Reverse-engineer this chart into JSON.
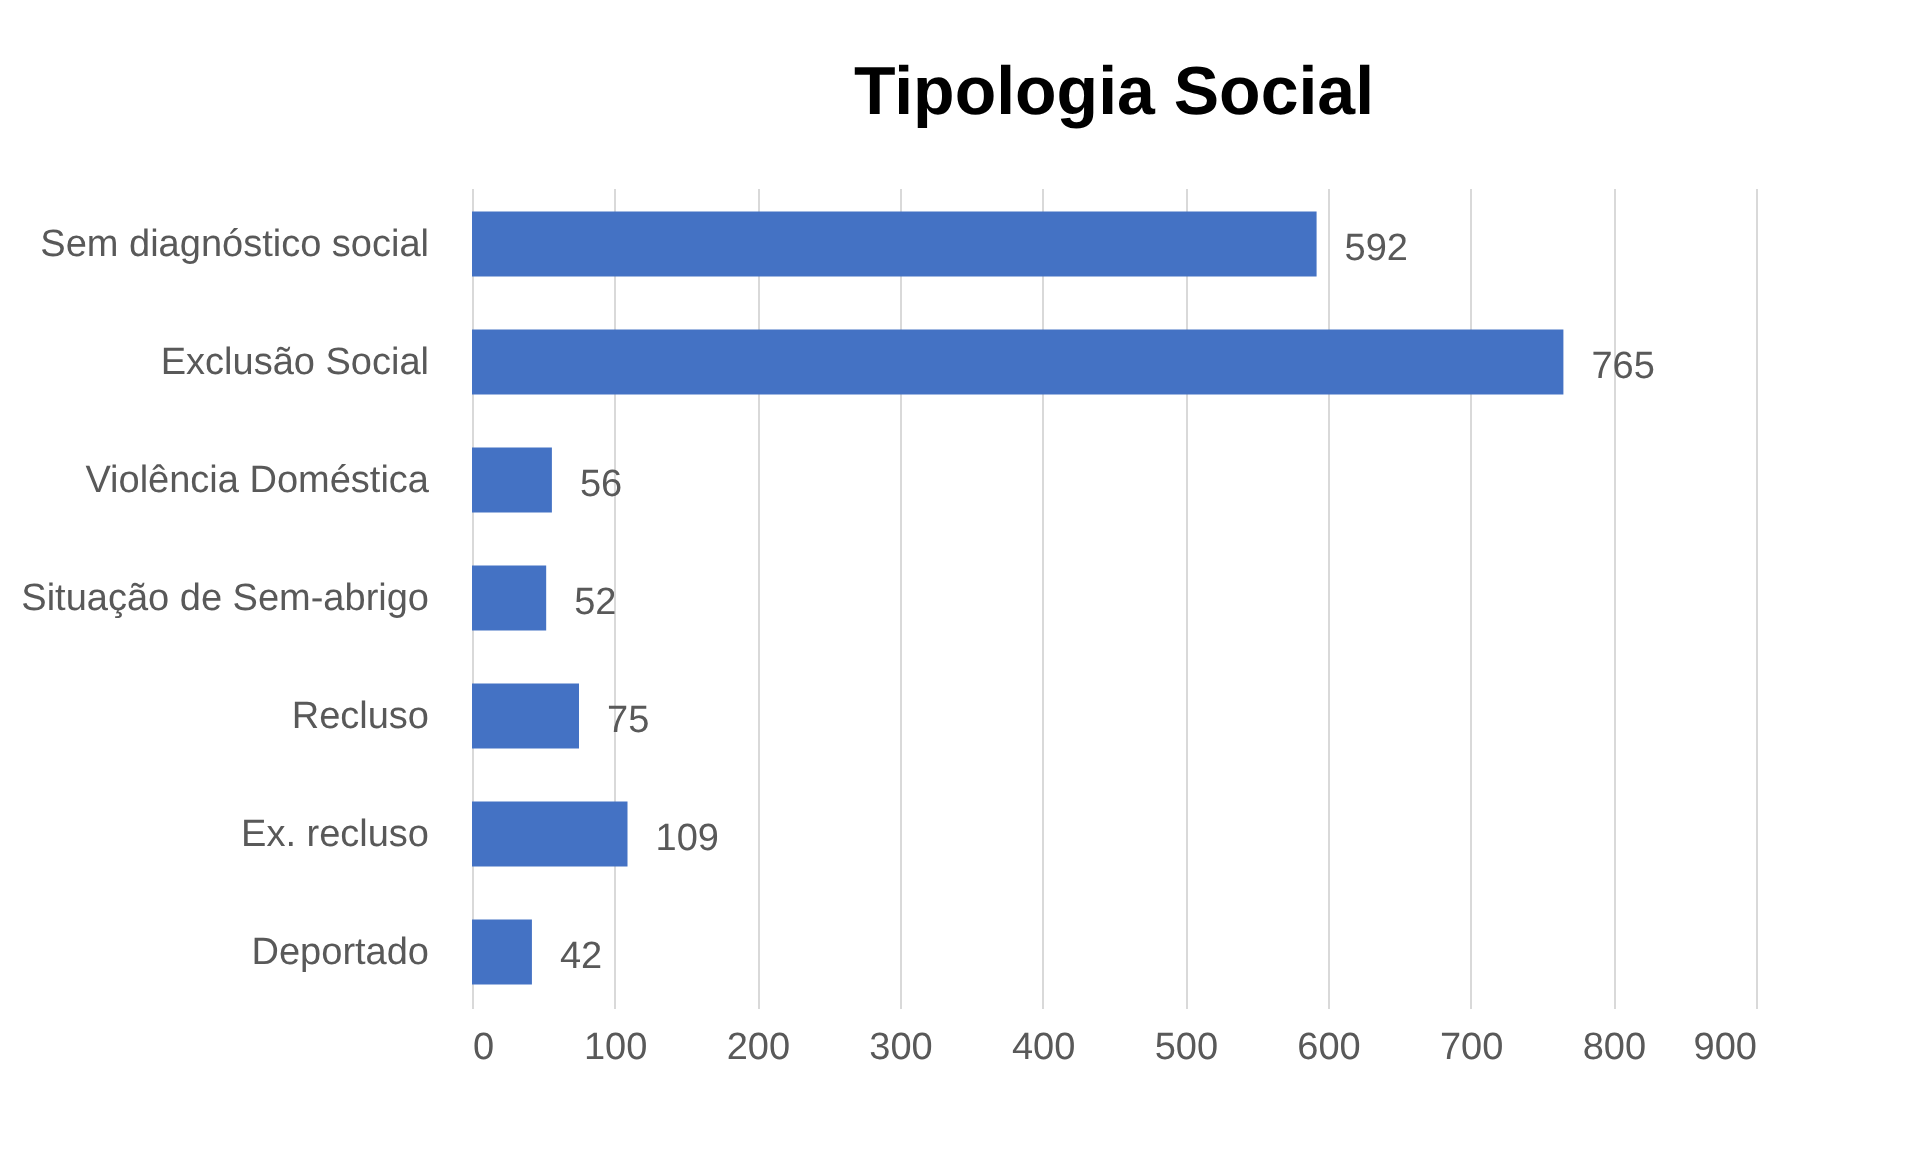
{
  "chart_data": {
    "type": "bar",
    "orientation": "horizontal",
    "title": "Tipologia Social",
    "categories": [
      "Sem diagnóstico social",
      "Exclusão Social",
      "Violência Doméstica",
      "Situação de Sem-abrigo",
      "Recluso",
      "Ex. recluso",
      "Deportado"
    ],
    "values": [
      592,
      765,
      56,
      52,
      75,
      109,
      42
    ],
    "color": "#4472c4",
    "xlim": [
      0,
      900
    ],
    "xticks": [
      0,
      100,
      200,
      300,
      400,
      500,
      600,
      700,
      800,
      900
    ],
    "grid": "x",
    "data_labels": true
  }
}
